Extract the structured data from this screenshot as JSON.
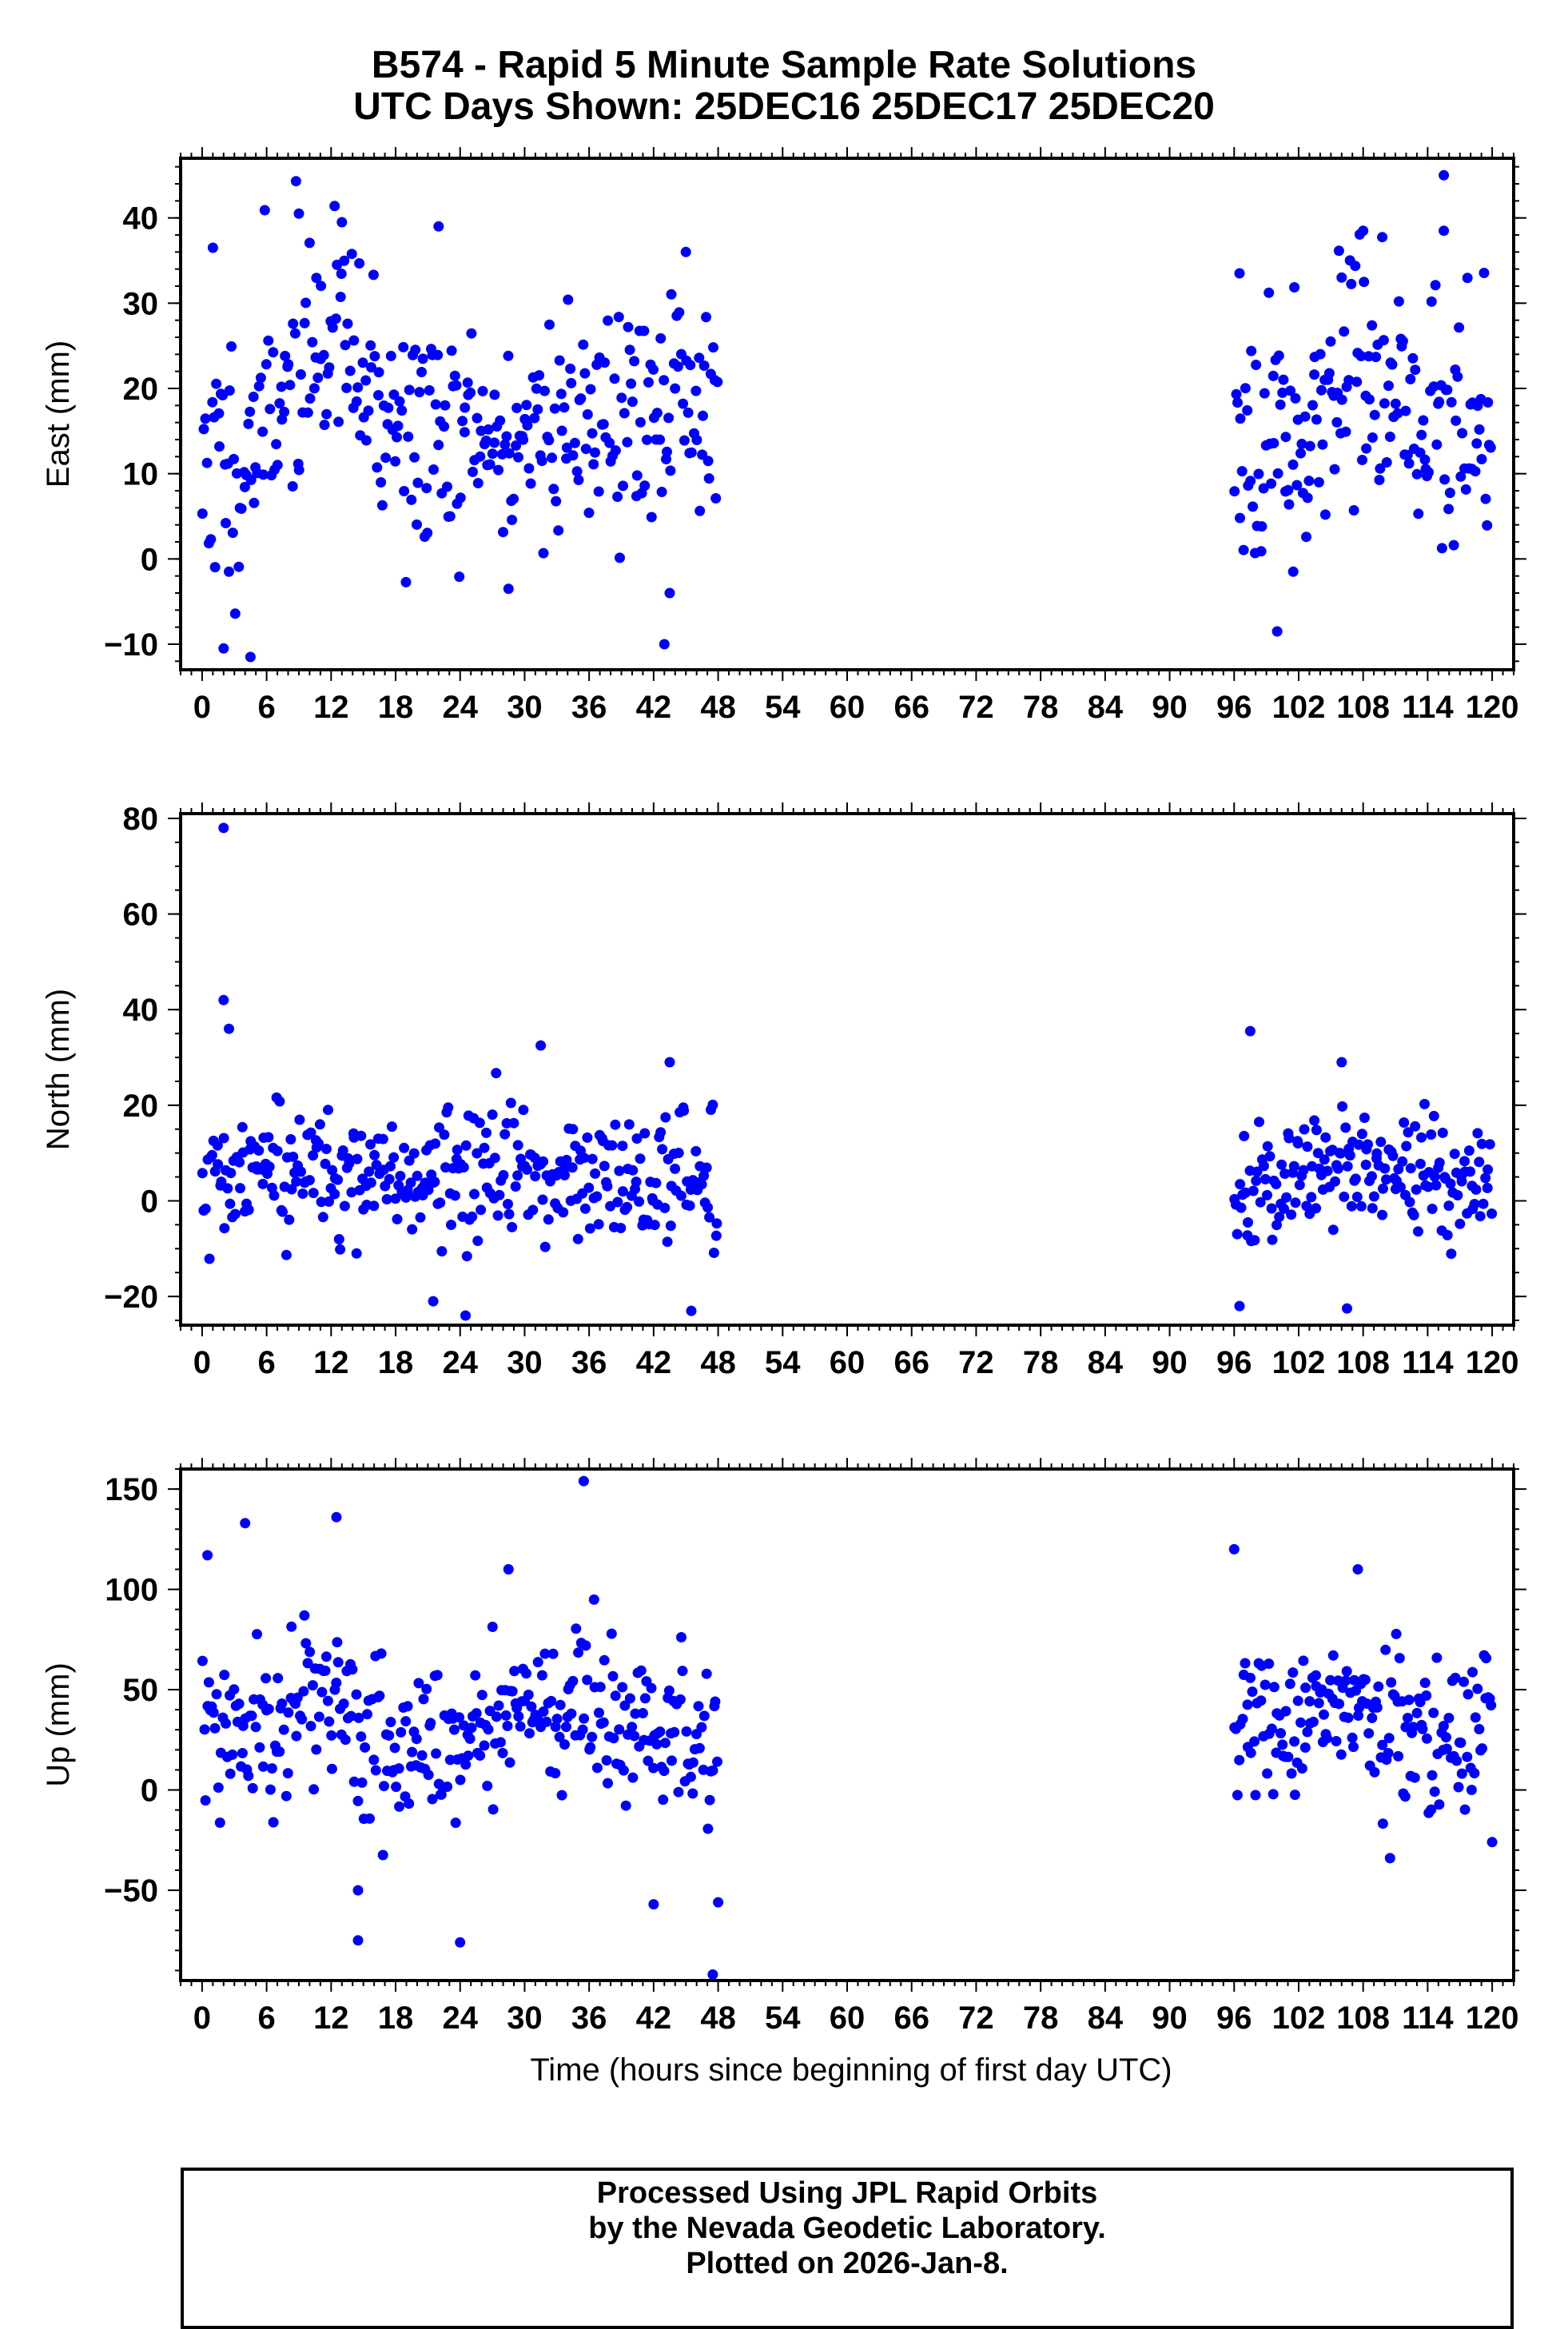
{
  "title": {
    "line1": "B574 - Rapid 5 Minute Sample Rate Solutions",
    "line2": "UTC Days Shown:  25DEC16 25DEC17 25DEC20"
  },
  "xlabel": "Time (hours since beginning of first day UTC)",
  "footer": {
    "line1": "Processed Using JPL Rapid Orbits",
    "line2": "by the Nevada Geodetic Laboratory.",
    "line3": "Plotted on 2026-Jan-8."
  },
  "colors": {
    "points": "#0000ff",
    "axes": "#000000"
  },
  "chart_data": [
    {
      "type": "scatter",
      "ylabel": "East (mm)",
      "xlim": [
        -2,
        122
      ],
      "ylim": [
        -13,
        47
      ],
      "xticks": [
        0,
        6,
        12,
        18,
        24,
        30,
        36,
        42,
        48,
        54,
        60,
        66,
        72,
        78,
        84,
        90,
        96,
        102,
        108,
        114,
        120
      ],
      "yticks": [
        -10,
        0,
        10,
        20,
        30,
        40
      ],
      "segments": [
        {
          "x0": 0,
          "x1": 48,
          "knots": [
            [
              0,
              12
            ],
            [
              4,
              11
            ],
            [
              8,
              22
            ],
            [
              12,
              27
            ],
            [
              16,
              18
            ],
            [
              20,
              14
            ],
            [
              24,
              14
            ],
            [
              28,
              13
            ],
            [
              32,
              16
            ],
            [
              36,
              17
            ],
            [
              40,
              16
            ],
            [
              44,
              18
            ],
            [
              48,
              17
            ]
          ],
          "spread": 7,
          "n": 330,
          "seed": 11
        },
        {
          "x0": 96,
          "x1": 120,
          "knots": [
            [
              96,
              17
            ],
            [
              98,
              16
            ],
            [
              100,
              15
            ],
            [
              102,
              16
            ],
            [
              106,
              22
            ],
            [
              110,
              20
            ],
            [
              114,
              16
            ],
            [
              118,
              16
            ],
            [
              120,
              15
            ]
          ],
          "spread": 7,
          "n": 170,
          "seed": 23
        }
      ],
      "outliers": [
        [
          2,
          -10.5
        ],
        [
          4.5,
          -11.5
        ],
        [
          1,
          36.5
        ],
        [
          9,
          40.5
        ],
        [
          13,
          39.5
        ],
        [
          22,
          39
        ],
        [
          43,
          -10
        ],
        [
          43.5,
          -4
        ],
        [
          28.5,
          -3.5
        ],
        [
          101.5,
          -1.5
        ],
        [
          100,
          -8.5
        ],
        [
          115.5,
          45
        ],
        [
          115.5,
          38.5
        ],
        [
          108,
          38.5
        ],
        [
          96.5,
          33.5
        ],
        [
          106,
          33
        ],
        [
          45,
          36
        ],
        [
          2.5,
          -1.5
        ]
      ]
    },
    {
      "type": "scatter",
      "ylabel": "North (mm)",
      "xlim": [
        -2,
        122
      ],
      "ylim": [
        -26,
        81
      ],
      "xticks": [
        0,
        6,
        12,
        18,
        24,
        30,
        36,
        42,
        48,
        54,
        60,
        66,
        72,
        78,
        84,
        90,
        96,
        102,
        108,
        114,
        120
      ],
      "yticks": [
        -20,
        0,
        20,
        40,
        60,
        80
      ],
      "segments": [
        {
          "x0": 0,
          "x1": 48,
          "knots": [
            [
              0,
              2
            ],
            [
              6,
              4
            ],
            [
              12,
              8
            ],
            [
              18,
              3
            ],
            [
              24,
              5
            ],
            [
              30,
              6
            ],
            [
              36,
              3
            ],
            [
              42,
              5
            ],
            [
              48,
              4
            ]
          ],
          "spread": 7,
          "n": 330,
          "seed": 37
        },
        {
          "x0": 96,
          "x1": 120,
          "knots": [
            [
              96,
              0
            ],
            [
              100,
              2
            ],
            [
              104,
              8
            ],
            [
              108,
              8
            ],
            [
              112,
              5
            ],
            [
              116,
              4
            ],
            [
              120,
              4
            ]
          ],
          "spread": 6,
          "n": 170,
          "seed": 41
        }
      ],
      "outliers": [
        [
          2,
          78
        ],
        [
          2,
          42
        ],
        [
          2.5,
          36
        ],
        [
          24.5,
          -24
        ],
        [
          21.5,
          -21
        ],
        [
          45.5,
          -23
        ],
        [
          31.5,
          32.5
        ],
        [
          43.5,
          29
        ],
        [
          97.5,
          35.5
        ],
        [
          96.5,
          -22
        ],
        [
          106.5,
          -22.5
        ],
        [
          106,
          29
        ]
      ]
    },
    {
      "type": "scatter",
      "ylabel": "Up (mm)",
      "xlim": [
        -2,
        122
      ],
      "ylim": [
        -95,
        160
      ],
      "xticks": [
        0,
        6,
        12,
        18,
        24,
        30,
        36,
        42,
        48,
        54,
        60,
        66,
        72,
        78,
        84,
        90,
        96,
        102,
        108,
        114,
        120
      ],
      "yticks": [
        -50,
        0,
        50,
        100,
        150
      ],
      "segments": [
        {
          "x0": 0,
          "x1": 48,
          "knots": [
            [
              0,
              30
            ],
            [
              6,
              35
            ],
            [
              10,
              48
            ],
            [
              14,
              30
            ],
            [
              18,
              22
            ],
            [
              24,
              18
            ],
            [
              30,
              35
            ],
            [
              36,
              50
            ],
            [
              40,
              25
            ],
            [
              44,
              28
            ],
            [
              48,
              22
            ]
          ],
          "spread": 20,
          "n": 330,
          "seed": 53
        },
        {
          "x0": 96,
          "x1": 120,
          "knots": [
            [
              96,
              40
            ],
            [
              100,
              28
            ],
            [
              104,
              38
            ],
            [
              108,
              42
            ],
            [
              112,
              28
            ],
            [
              116,
              30
            ],
            [
              120,
              38
            ]
          ],
          "spread": 18,
          "n": 170,
          "seed": 67
        }
      ],
      "outliers": [
        [
          0.5,
          117
        ],
        [
          4,
          133
        ],
        [
          12.5,
          136
        ],
        [
          35.5,
          154
        ],
        [
          28.5,
          110
        ],
        [
          14.5,
          -75
        ],
        [
          24,
          -76
        ],
        [
          42,
          -57
        ],
        [
          48,
          -56
        ],
        [
          47.5,
          -92
        ],
        [
          96,
          120
        ],
        [
          107.5,
          110
        ],
        [
          110.5,
          -34
        ],
        [
          120,
          -26
        ],
        [
          14.5,
          -50
        ]
      ]
    }
  ]
}
